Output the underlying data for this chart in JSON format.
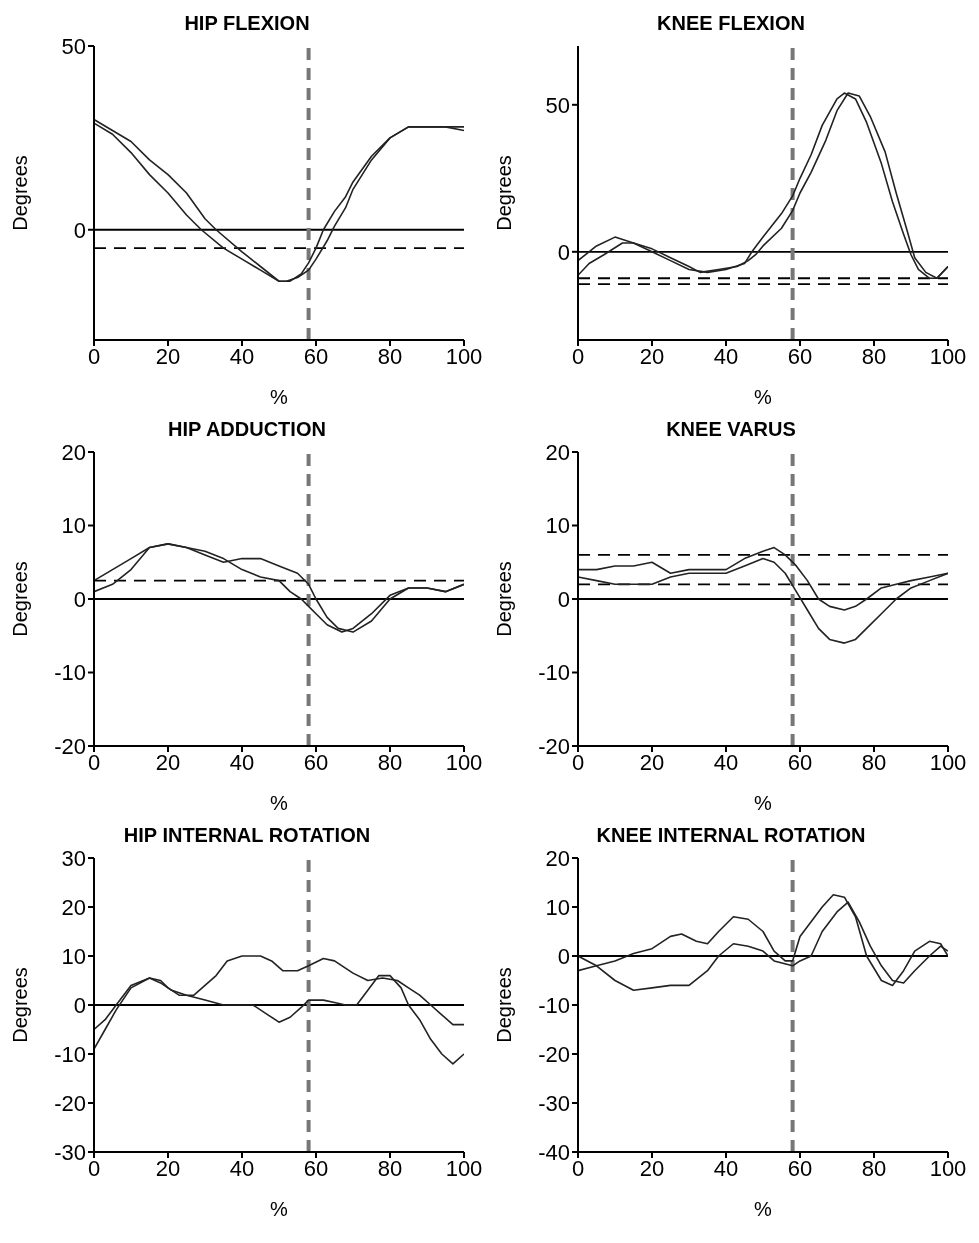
{
  "chart_data": [
    {
      "type": "line",
      "title": "HIP FLEXION",
      "xlabel": "%",
      "ylabel": "Degrees",
      "xlim": [
        0,
        100
      ],
      "xticks": [
        0,
        20,
        40,
        60,
        80,
        100
      ],
      "ylim": [
        -30,
        50
      ],
      "yticks": [
        0,
        50
      ],
      "line_style": "solid",
      "marker": "none",
      "ref_lines": [
        {
          "axis": "y",
          "value": 0,
          "color": "#000000",
          "line_style": "solid"
        },
        {
          "axis": "y",
          "value": -5,
          "color": "#000000",
          "line_style": "dashed"
        },
        {
          "axis": "x",
          "value": 58,
          "color": "#777777",
          "line_style": "dashed"
        }
      ],
      "series": [
        {
          "color": "#222222",
          "x": [
            0,
            5,
            10,
            15,
            20,
            25,
            30,
            33,
            40,
            45,
            50,
            52,
            55,
            58,
            60,
            63,
            65,
            68,
            70,
            75,
            80,
            85,
            90,
            95,
            100
          ],
          "values": [
            30,
            27,
            24,
            19,
            15,
            10,
            3,
            0,
            -6,
            -10,
            -14,
            -14,
            -13,
            -11,
            -8,
            -3,
            1,
            6,
            11,
            19,
            25,
            28,
            28,
            28,
            27
          ]
        },
        {
          "color": "#222222",
          "x": [
            0,
            5,
            10,
            15,
            20,
            25,
            29,
            35,
            40,
            45,
            50,
            53,
            56,
            58,
            60,
            62,
            65,
            68,
            70,
            75,
            80,
            85,
            90,
            95,
            100
          ],
          "values": [
            29,
            26,
            21,
            15,
            10,
            4,
            0,
            -5,
            -8,
            -11,
            -14,
            -14,
            -12,
            -9,
            -5,
            0,
            5,
            9,
            13,
            20,
            25,
            28,
            28,
            28,
            28
          ]
        }
      ]
    },
    {
      "type": "line",
      "title": "KNEE FLEXION",
      "xlabel": "%",
      "ylabel": "Degrees",
      "xlim": [
        0,
        100
      ],
      "xticks": [
        0,
        20,
        40,
        60,
        80,
        100
      ],
      "ylim": [
        -30,
        70
      ],
      "yticks": [
        0,
        50
      ],
      "line_style": "solid",
      "marker": "none",
      "ref_lines": [
        {
          "axis": "y",
          "value": 0,
          "color": "#000000",
          "line_style": "solid"
        },
        {
          "axis": "y",
          "value": -9,
          "color": "#000000",
          "line_style": "dashed"
        },
        {
          "axis": "y",
          "value": -11,
          "color": "#000000",
          "line_style": "dashed"
        },
        {
          "axis": "x",
          "value": 58,
          "color": "#777777",
          "line_style": "dashed"
        }
      ],
      "series": [
        {
          "color": "#222222",
          "x": [
            0,
            5,
            10,
            15,
            20,
            25,
            30,
            35,
            40,
            45,
            47,
            50,
            55,
            58,
            60,
            63,
            66,
            70,
            72,
            75,
            78,
            82,
            85,
            88,
            90,
            92,
            95,
            97,
            100
          ],
          "values": [
            -3,
            2,
            5,
            3,
            0,
            -3,
            -6,
            -7,
            -6,
            -4,
            0,
            5,
            13,
            19,
            25,
            33,
            43,
            52,
            54,
            52,
            44,
            30,
            17,
            6,
            -1,
            -6,
            -9,
            -9,
            -5
          ]
        },
        {
          "color": "#222222",
          "x": [
            0,
            3,
            7,
            12,
            15,
            20,
            25,
            30,
            33,
            38,
            43,
            46,
            48,
            50,
            55,
            58,
            60,
            63,
            67,
            70,
            73,
            76,
            79,
            83,
            86,
            89,
            91,
            94,
            97,
            100
          ],
          "values": [
            -8,
            -4,
            -1,
            3,
            3,
            1,
            -2,
            -5,
            -7,
            -6,
            -5,
            -3,
            -1,
            2,
            8,
            14,
            20,
            27,
            38,
            48,
            54,
            53,
            46,
            34,
            20,
            7,
            -2,
            -7,
            -9,
            -5
          ]
        }
      ]
    },
    {
      "type": "line",
      "title": "HIP ADDUCTION",
      "xlabel": "%",
      "ylabel": "Degrees",
      "xlim": [
        0,
        100
      ],
      "xticks": [
        0,
        20,
        40,
        60,
        80,
        100
      ],
      "ylim": [
        -20,
        20
      ],
      "yticks": [
        -20,
        -10,
        0,
        10,
        20
      ],
      "line_style": "solid",
      "marker": "none",
      "ref_lines": [
        {
          "axis": "y",
          "value": 0,
          "color": "#000000",
          "line_style": "solid"
        },
        {
          "axis": "y",
          "value": 2.5,
          "color": "#000000",
          "line_style": "dashed"
        },
        {
          "axis": "x",
          "value": 58,
          "color": "#777777",
          "line_style": "dashed"
        }
      ],
      "series": [
        {
          "color": "#222222",
          "x": [
            0,
            5,
            10,
            15,
            20,
            25,
            30,
            35,
            40,
            45,
            50,
            55,
            58,
            60,
            63,
            66,
            70,
            75,
            80,
            85,
            90,
            95,
            100
          ],
          "values": [
            2.5,
            4,
            5.5,
            7,
            7.5,
            7,
            6,
            5,
            5.5,
            5.5,
            4.5,
            3.5,
            2,
            0,
            -2.5,
            -4,
            -4.5,
            -3,
            0,
            1.5,
            1.5,
            1,
            2
          ]
        },
        {
          "color": "#222222",
          "x": [
            0,
            5,
            10,
            15,
            20,
            25,
            30,
            35,
            40,
            45,
            50,
            53,
            56,
            58,
            60,
            63,
            67,
            70,
            75,
            80,
            85,
            90,
            95,
            100
          ],
          "values": [
            1,
            2,
            4,
            7,
            7.5,
            7,
            6.5,
            5.5,
            4,
            3,
            2.5,
            1,
            0,
            -1,
            -2,
            -3.5,
            -4.5,
            -4,
            -2,
            0.5,
            1.5,
            1.5,
            1,
            2
          ]
        }
      ]
    },
    {
      "type": "line",
      "title": "KNEE VARUS",
      "xlabel": "%",
      "ylabel": "Degrees",
      "xlim": [
        0,
        100
      ],
      "xticks": [
        0,
        20,
        40,
        60,
        80,
        100
      ],
      "ylim": [
        -20,
        20
      ],
      "yticks": [
        -20,
        -10,
        0,
        10,
        20
      ],
      "line_style": "solid",
      "marker": "none",
      "ref_lines": [
        {
          "axis": "y",
          "value": 0,
          "color": "#000000",
          "line_style": "solid"
        },
        {
          "axis": "y",
          "value": 6,
          "color": "#000000",
          "line_style": "dashed"
        },
        {
          "axis": "y",
          "value": 2,
          "color": "#000000",
          "line_style": "dashed"
        },
        {
          "axis": "x",
          "value": 58,
          "color": "#777777",
          "line_style": "dashed"
        }
      ],
      "series": [
        {
          "color": "#222222",
          "x": [
            0,
            5,
            10,
            15,
            20,
            25,
            30,
            35,
            40,
            45,
            50,
            53,
            56,
            59,
            62,
            65,
            68,
            72,
            75,
            78,
            82,
            86,
            90,
            95,
            100
          ],
          "values": [
            3,
            2.5,
            2,
            2,
            2,
            3,
            3.5,
            3.5,
            3.5,
            4.5,
            5.5,
            5,
            3.5,
            1,
            -1.5,
            -4,
            -5.5,
            -6,
            -5.5,
            -4,
            -2,
            0,
            1.5,
            2.5,
            3.5
          ]
        },
        {
          "color": "#222222",
          "x": [
            0,
            5,
            10,
            15,
            20,
            25,
            30,
            35,
            40,
            45,
            50,
            53,
            56,
            59,
            62,
            65,
            68,
            72,
            75,
            78,
            82,
            86,
            90,
            95,
            100
          ],
          "values": [
            4,
            4,
            4.5,
            4.5,
            5,
            3.5,
            4,
            4,
            4,
            5.5,
            6.5,
            7,
            6,
            4.5,
            2.5,
            0,
            -1,
            -1.5,
            -1,
            0,
            1.5,
            2,
            2.5,
            3,
            3.5
          ]
        }
      ]
    },
    {
      "type": "line",
      "title": "HIP INTERNAL ROTATION",
      "xlabel": "%",
      "ylabel": "Degrees",
      "xlim": [
        0,
        100
      ],
      "xticks": [
        0,
        20,
        40,
        60,
        80,
        100
      ],
      "ylim": [
        -30,
        30
      ],
      "yticks": [
        -30,
        -20,
        -10,
        0,
        10,
        20,
        30
      ],
      "line_style": "solid",
      "marker": "none",
      "ref_lines": [
        {
          "axis": "y",
          "value": 0,
          "color": "#000000",
          "line_style": "solid"
        },
        {
          "axis": "x",
          "value": 58,
          "color": "#777777",
          "line_style": "dashed"
        }
      ],
      "series": [
        {
          "color": "#222222",
          "x": [
            0,
            3,
            6,
            10,
            15,
            18,
            20,
            23,
            27,
            30,
            33,
            36,
            40,
            45,
            48,
            51,
            55,
            58,
            62,
            65,
            70,
            74,
            78,
            82,
            85,
            88,
            91,
            94,
            97,
            100
          ],
          "values": [
            -5,
            -3,
            0,
            4,
            5.5,
            5,
            3.5,
            2,
            2,
            4,
            6,
            9,
            10,
            10,
            9,
            7,
            7,
            8,
            9.5,
            9,
            6.5,
            5,
            5.5,
            5,
            3.5,
            2,
            0,
            -2,
            -4,
            -4
          ]
        },
        {
          "color": "#222222",
          "x": [
            0,
            3,
            6,
            10,
            15,
            18,
            21,
            25,
            30,
            35,
            40,
            43,
            47,
            50,
            53,
            56,
            58,
            62,
            65,
            68,
            71,
            74,
            77,
            80,
            83,
            85,
            88,
            91,
            94,
            97,
            100
          ],
          "values": [
            -9,
            -5,
            -1,
            3.5,
            5.5,
            4.5,
            3,
            2,
            1,
            0,
            0,
            0,
            -2,
            -3.5,
            -2.5,
            -0.5,
            1,
            1,
            0.5,
            0,
            0,
            3,
            6,
            6,
            3.5,
            0,
            -3,
            -7,
            -10,
            -12,
            -10
          ]
        }
      ]
    },
    {
      "type": "line",
      "title": "KNEE INTERNAL ROTATION",
      "xlabel": "%",
      "ylabel": "Degrees",
      "xlim": [
        0,
        100
      ],
      "xticks": [
        0,
        20,
        40,
        60,
        80,
        100
      ],
      "ylim": [
        -40,
        20
      ],
      "yticks": [
        -40,
        -30,
        -20,
        -10,
        0,
        10,
        20
      ],
      "line_style": "solid",
      "marker": "none",
      "ref_lines": [
        {
          "axis": "y",
          "value": 0,
          "color": "#000000",
          "line_style": "solid"
        },
        {
          "axis": "x",
          "value": 58,
          "color": "#777777",
          "line_style": "dashed"
        }
      ],
      "series": [
        {
          "color": "#222222",
          "x": [
            0,
            5,
            10,
            15,
            20,
            25,
            28,
            32,
            35,
            38,
            42,
            46,
            50,
            53,
            56,
            58,
            60,
            63,
            66,
            69,
            72,
            75,
            78,
            82,
            85,
            88,
            91,
            95,
            98,
            100
          ],
          "values": [
            -3,
            -2,
            -1,
            0.5,
            1.5,
            4,
            4.5,
            3,
            2.5,
            5,
            8,
            7.5,
            5,
            1,
            -1,
            -1,
            4,
            7,
            10,
            12.5,
            12,
            8,
            0,
            -5,
            -6,
            -3,
            1,
            3,
            2.5,
            0
          ]
        },
        {
          "color": "#222222",
          "x": [
            0,
            5,
            10,
            15,
            20,
            25,
            30,
            35,
            38,
            42,
            46,
            50,
            53,
            58,
            60,
            63,
            66,
            70,
            73,
            76,
            79,
            82,
            85,
            88,
            91,
            95,
            98,
            100
          ],
          "values": [
            0,
            -2,
            -5,
            -7,
            -6.5,
            -6,
            -6,
            -3,
            0,
            2.5,
            2,
            1,
            -1,
            -2,
            -1,
            0,
            5,
            9,
            11,
            7,
            2,
            -2,
            -5,
            -5.5,
            -3,
            0,
            2,
            1
          ]
        }
      ]
    }
  ]
}
